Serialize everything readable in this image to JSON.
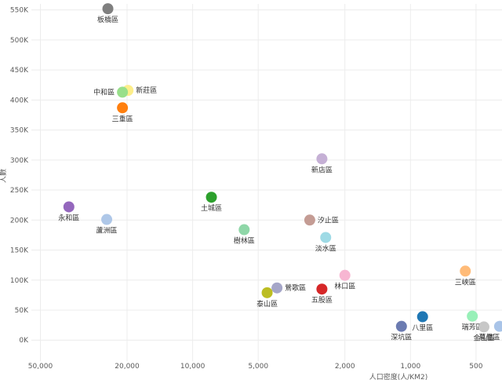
{
  "chart_data": {
    "type": "scatter",
    "title": "",
    "xlabel": "人口密度(人/KM2)",
    "ylabel": "人數",
    "x_scale": "log",
    "x_reversed": true,
    "xlim": [
      55000,
      380
    ],
    "ylim": [
      -35000,
      560000
    ],
    "x_ticks": [
      {
        "value": 50000,
        "label": "50,000"
      },
      {
        "value": 20000,
        "label": "20,000"
      },
      {
        "value": 10000,
        "label": "10,000"
      },
      {
        "value": 5000,
        "label": "5,000"
      },
      {
        "value": 2000,
        "label": "2,000"
      },
      {
        "value": 1000,
        "label": "1,000"
      },
      {
        "value": 500,
        "label": "500"
      }
    ],
    "y_ticks": [
      {
        "value": 0,
        "label": "0K"
      },
      {
        "value": 50000,
        "label": "50K"
      },
      {
        "value": 100000,
        "label": "100K"
      },
      {
        "value": 150000,
        "label": "150K"
      },
      {
        "value": 200000,
        "label": "200K"
      },
      {
        "value": 250000,
        "label": "250K"
      },
      {
        "value": 300000,
        "label": "300K"
      },
      {
        "value": 350000,
        "label": "350K"
      },
      {
        "value": 400000,
        "label": "400K"
      },
      {
        "value": 450000,
        "label": "450K"
      },
      {
        "value": 500000,
        "label": "500K"
      },
      {
        "value": 550000,
        "label": "550K"
      }
    ],
    "points": [
      {
        "name": "板橋區",
        "x": 24500,
        "y": 552000,
        "color": "#7f7f7f",
        "label_pos": "below"
      },
      {
        "name": "新莊區",
        "x": 19800,
        "y": 416000,
        "color": "#fdee8a",
        "label_pos": "right"
      },
      {
        "name": "中和區",
        "x": 21000,
        "y": 413000,
        "color": "#98df8a",
        "label_pos": "left"
      },
      {
        "name": "三重區",
        "x": 21000,
        "y": 387000,
        "color": "#ff7f0e",
        "label_pos": "below"
      },
      {
        "name": "新店區",
        "x": 2550,
        "y": 302000,
        "color": "#c5b0d5",
        "label_pos": "below"
      },
      {
        "name": "土城區",
        "x": 8200,
        "y": 238000,
        "color": "#2ca02c",
        "label_pos": "below"
      },
      {
        "name": "永和區",
        "x": 37000,
        "y": 222000,
        "color": "#9467bd",
        "label_pos": "below"
      },
      {
        "name": "蘆洲區",
        "x": 24800,
        "y": 201000,
        "color": "#aec7e8",
        "label_pos": "below"
      },
      {
        "name": "汐止區",
        "x": 2900,
        "y": 200000,
        "color": "#c49c94",
        "label_pos": "right"
      },
      {
        "name": "樹林區",
        "x": 5800,
        "y": 184000,
        "color": "#8fd7a8",
        "label_pos": "below"
      },
      {
        "name": "淡水區",
        "x": 2450,
        "y": 171000,
        "color": "#9edae5",
        "label_pos": "below"
      },
      {
        "name": "林口區",
        "x": 2000,
        "y": 108000,
        "color": "#f7b6d2",
        "label_pos": "below"
      },
      {
        "name": "三峽區",
        "x": 560,
        "y": 115000,
        "color": "#ffbb78",
        "label_pos": "below"
      },
      {
        "name": "鶯歌區",
        "x": 4100,
        "y": 87000,
        "color": "#a5a6c8",
        "label_pos": "right"
      },
      {
        "name": "五股區",
        "x": 2550,
        "y": 85000,
        "color": "#d62728",
        "label_pos": "below"
      },
      {
        "name": "泰山區",
        "x": 4550,
        "y": 79000,
        "color": "#bcbd22",
        "label_pos": "below"
      },
      {
        "name": "八里區",
        "x": 880,
        "y": 39000,
        "color": "#1f77b4",
        "label_pos": "below"
      },
      {
        "name": "瑞芳區",
        "x": 520,
        "y": 40000,
        "color": "#98f0b8",
        "label_pos": "below"
      },
      {
        "name": "深坑區",
        "x": 1100,
        "y": 23000,
        "color": "#6b7bb1",
        "label_pos": "below"
      },
      {
        "name": "金山區",
        "x": 460,
        "y": 22000,
        "color": "#c7c7c7",
        "label_pos": "below"
      },
      {
        "name": "萬里區",
        "x": 390,
        "y": 23000,
        "color": "#a9c4e8",
        "label_pos": "below"
      }
    ]
  }
}
